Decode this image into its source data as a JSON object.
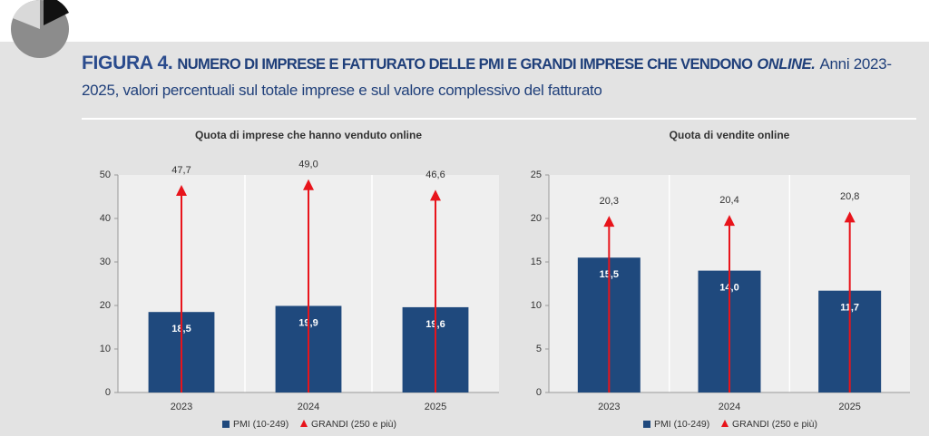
{
  "header": {
    "figure_label": "FIGURA 4.",
    "title_main": "NUMERO DI IMPRESE E FATTURATO DELLE PMI E GRANDI IMPRESE CHE VENDONO",
    "title_italic": "ONLINE.",
    "title_rest": "Anni 2023-2025, valori percentuali sul totale imprese e sul valore complessivo del fatturato"
  },
  "chart_data": [
    {
      "type": "bar",
      "title": "Quota  di imprese che hanno venduto online",
      "categories": [
        "2023",
        "2024",
        "2025"
      ],
      "series": [
        {
          "name": "PMI (10-249)",
          "color": "#1f497d",
          "style": "bar",
          "values": [
            18.5,
            19.9,
            19.6
          ],
          "value_labels": [
            "18,5",
            "19,9",
            "19,6"
          ]
        },
        {
          "name": "GRANDI (250 e più)",
          "color": "#e8141b",
          "style": "arrow",
          "values": [
            47.7,
            49.0,
            46.6
          ],
          "value_labels": [
            "47,7",
            "49,0",
            "46,6"
          ]
        }
      ],
      "ylim": [
        0,
        50
      ],
      "yticks": [
        0,
        10,
        20,
        30,
        40,
        50
      ]
    },
    {
      "type": "bar",
      "title": "Quota di vendite online",
      "categories": [
        "2023",
        "2024",
        "2025"
      ],
      "series": [
        {
          "name": "PMI (10-249)",
          "color": "#1f497d",
          "style": "bar",
          "values": [
            15.5,
            14.0,
            11.7
          ],
          "value_labels": [
            "15,5",
            "14,0",
            "11,7"
          ]
        },
        {
          "name": "GRANDI (250 e più)",
          "color": "#e8141b",
          "style": "arrow",
          "values": [
            20.3,
            20.4,
            20.8
          ],
          "value_labels": [
            "20,3",
            "20,4",
            "20,8"
          ]
        }
      ],
      "ylim": [
        0,
        25
      ],
      "yticks": [
        0,
        5,
        10,
        15,
        20,
        25
      ]
    }
  ]
}
